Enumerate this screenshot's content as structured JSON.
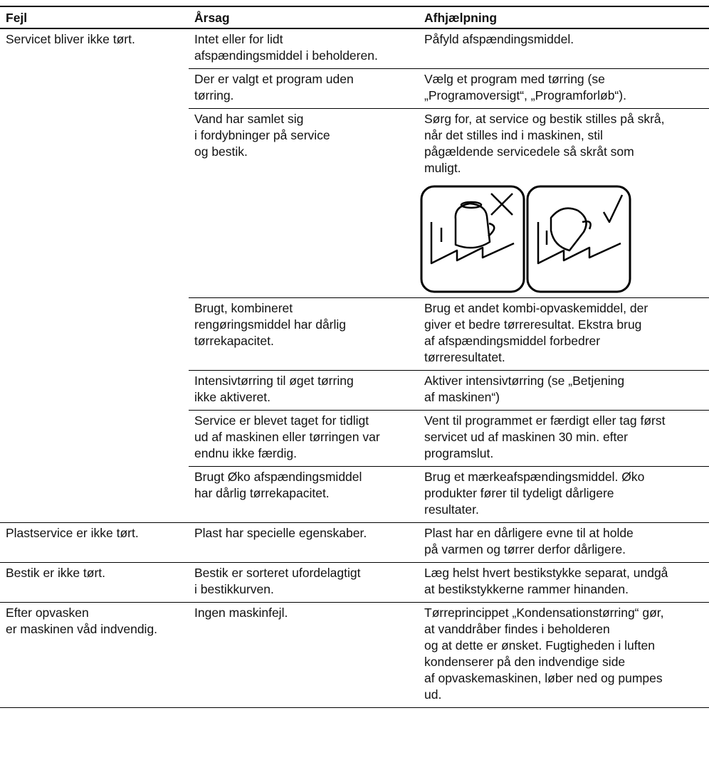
{
  "header": [
    "Fejl",
    "Årsag",
    "Afhjælpning"
  ],
  "rows": [
    {
      "fault": [
        "Servicet bliver ikke tørt."
      ],
      "causes": [
        {
          "cause": [
            "Intet eller for lidt",
            "afspændingsmiddel i beholderen."
          ],
          "remedy": [
            "Påfyld afspændingsmiddel."
          ]
        },
        {
          "cause": [
            "Der er valgt et program uden",
            "tørring."
          ],
          "remedy": [
            "Vælg et program med tørring (se",
            "„Programoversigt“, „Programforløb“)."
          ]
        },
        {
          "cause": [
            "Vand har samlet sig",
            "i fordybninger på service",
            "og bestik."
          ],
          "remedy": [
            "Sørg for, at service og bestik stilles på skrå,",
            "når det stilles ind i maskinen, stil",
            "pågældende servicedele så skråt som",
            "muligt."
          ]
        },
        {
          "cause": [
            "Brugt, kombineret",
            "rengøringsmiddel har dårlig",
            "tørrekapacitet."
          ],
          "remedy": [
            "Brug et andet kombi-opvaskemiddel, der",
            "giver et bedre tørreresultat. Ekstra brug",
            "af afspændingsmiddel forbedrer",
            "tørreresultatet."
          ]
        },
        {
          "cause": [
            "Intensivtørring til øget tørring",
            "ikke aktiveret."
          ],
          "remedy": [
            "Aktiver intensivtørring (se „Betjening",
            "af maskinen“)"
          ]
        },
        {
          "cause": [
            "Service er blevet taget for tidligt",
            "ud af maskinen eller tørringen var",
            "endnu ikke færdig."
          ],
          "remedy": [
            "Vent til programmet er færdigt eller tag først",
            "servicet ud af maskinen 30 min. efter",
            "programslut."
          ]
        },
        {
          "cause": [
            "Brugt Øko afspændingsmiddel",
            "har dårlig tørrekapacitet."
          ],
          "remedy": [
            "Brug et mærkeafspændingsmiddel. Øko",
            "produkter fører til tydeligt dårligere",
            "resultater."
          ]
        }
      ]
    },
    {
      "fault": [
        "Plastservice er ikke tørt."
      ],
      "causes": [
        {
          "cause": [
            "Plast har specielle egenskaber."
          ],
          "remedy": [
            "Plast har en dårligere evne til at holde",
            "på varmen og tørrer derfor dårligere."
          ]
        }
      ]
    },
    {
      "fault": [
        "Bestik er ikke tørt."
      ],
      "causes": [
        {
          "cause": [
            "Bestik er sorteret ufordelagtigt",
            "i bestikkurven."
          ],
          "remedy": [
            "Læg helst hvert bestikstykke separat, undgå",
            "at bestikstykkerne rammer hinanden."
          ]
        }
      ]
    },
    {
      "fault": [
        "Efter opvasken",
        "er maskinen våd indvendig."
      ],
      "causes": [
        {
          "cause": [
            "Ingen maskinfejl."
          ],
          "remedy": [
            "Tørreprincippet „Kondensationstørring“ gør,",
            "at vanddråber findes i beholderen",
            "og at dette er ønsket. Fugtigheden i luften",
            "kondenserer på den indvendige side",
            "af opvaskemaskinen, løber ned og pumpes",
            "ud."
          ]
        }
      ]
    }
  ]
}
